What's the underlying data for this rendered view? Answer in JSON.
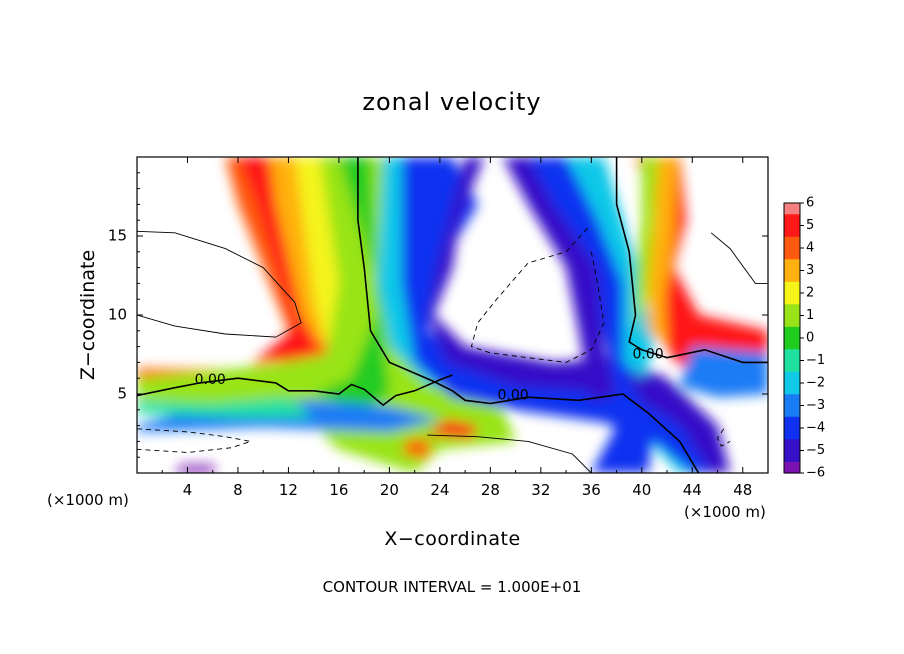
{
  "chart_data": {
    "type": "heatmap",
    "title": "zonal velocity",
    "xlabel": "X−coordinate",
    "ylabel": "Z−coordinate",
    "x_unit_left": "(×1000 m)",
    "x_unit_right": "(×1000 m)",
    "footer": "CONTOUR INTERVAL = 1.000E+01",
    "xlim": [
      0,
      50
    ],
    "ylim": [
      0,
      20
    ],
    "x_ticks": [
      4,
      8,
      12,
      16,
      20,
      24,
      28,
      32,
      36,
      40,
      44,
      48
    ],
    "y_ticks": [
      5,
      10,
      15
    ],
    "colorbar": {
      "ticks": [
        6,
        5,
        4,
        3,
        2,
        1,
        0,
        -1,
        -2,
        -3,
        -4,
        -5,
        -6
      ],
      "tick_labels": [
        "6",
        "5",
        "4",
        "3",
        "2",
        "1",
        "0",
        "−1",
        "−2",
        "−3",
        "−4",
        "−5",
        "−6"
      ],
      "range": [
        -6,
        6
      ]
    },
    "contour_labels": [
      {
        "text": "0.00",
        "x": 5.8,
        "y": 5.9
      },
      {
        "text": "0.00",
        "x": 29.8,
        "y": 4.9
      },
      {
        "text": "0.00",
        "x": 40.5,
        "y": 7.5
      }
    ]
  }
}
